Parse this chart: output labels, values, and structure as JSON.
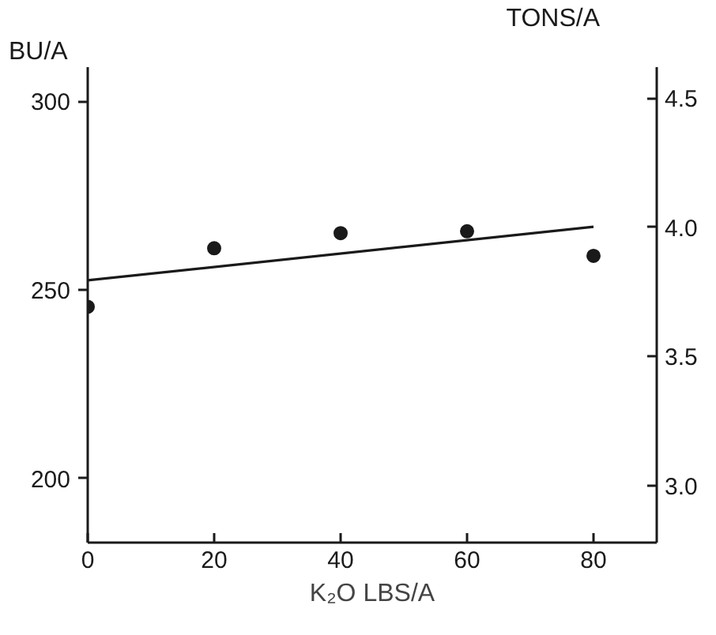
{
  "chart_data": {
    "type": "scatter",
    "xlabel": "K₂O LBS/A",
    "ylabel": "BU/A",
    "y2label": "TONS/A",
    "xlim": [
      0,
      90
    ],
    "xticks": [
      0,
      20,
      40,
      60,
      80
    ],
    "ylim": [
      183,
      309
    ],
    "yticks": [
      200,
      250,
      300
    ],
    "y2lim": [
      2.78,
      4.62
    ],
    "y2ticks": [
      {
        "value": 3,
        "label": "3.0"
      },
      3.5,
      {
        "value": 4,
        "label": "4.0"
      },
      4.5
    ],
    "grid": false,
    "marker": "circle",
    "series": [
      {
        "x": [
          0,
          20,
          40,
          60,
          80
        ],
        "values": [
          245.5,
          261,
          265,
          265.5,
          259
        ],
        "color": "#1a1a1a"
      },
      {
        "type": "line",
        "x": [
          0,
          80
        ],
        "values": [
          252.5,
          266.7
        ],
        "color": "#1a1a1a",
        "marker": "none",
        "line_style": "solid"
      }
    ]
  }
}
